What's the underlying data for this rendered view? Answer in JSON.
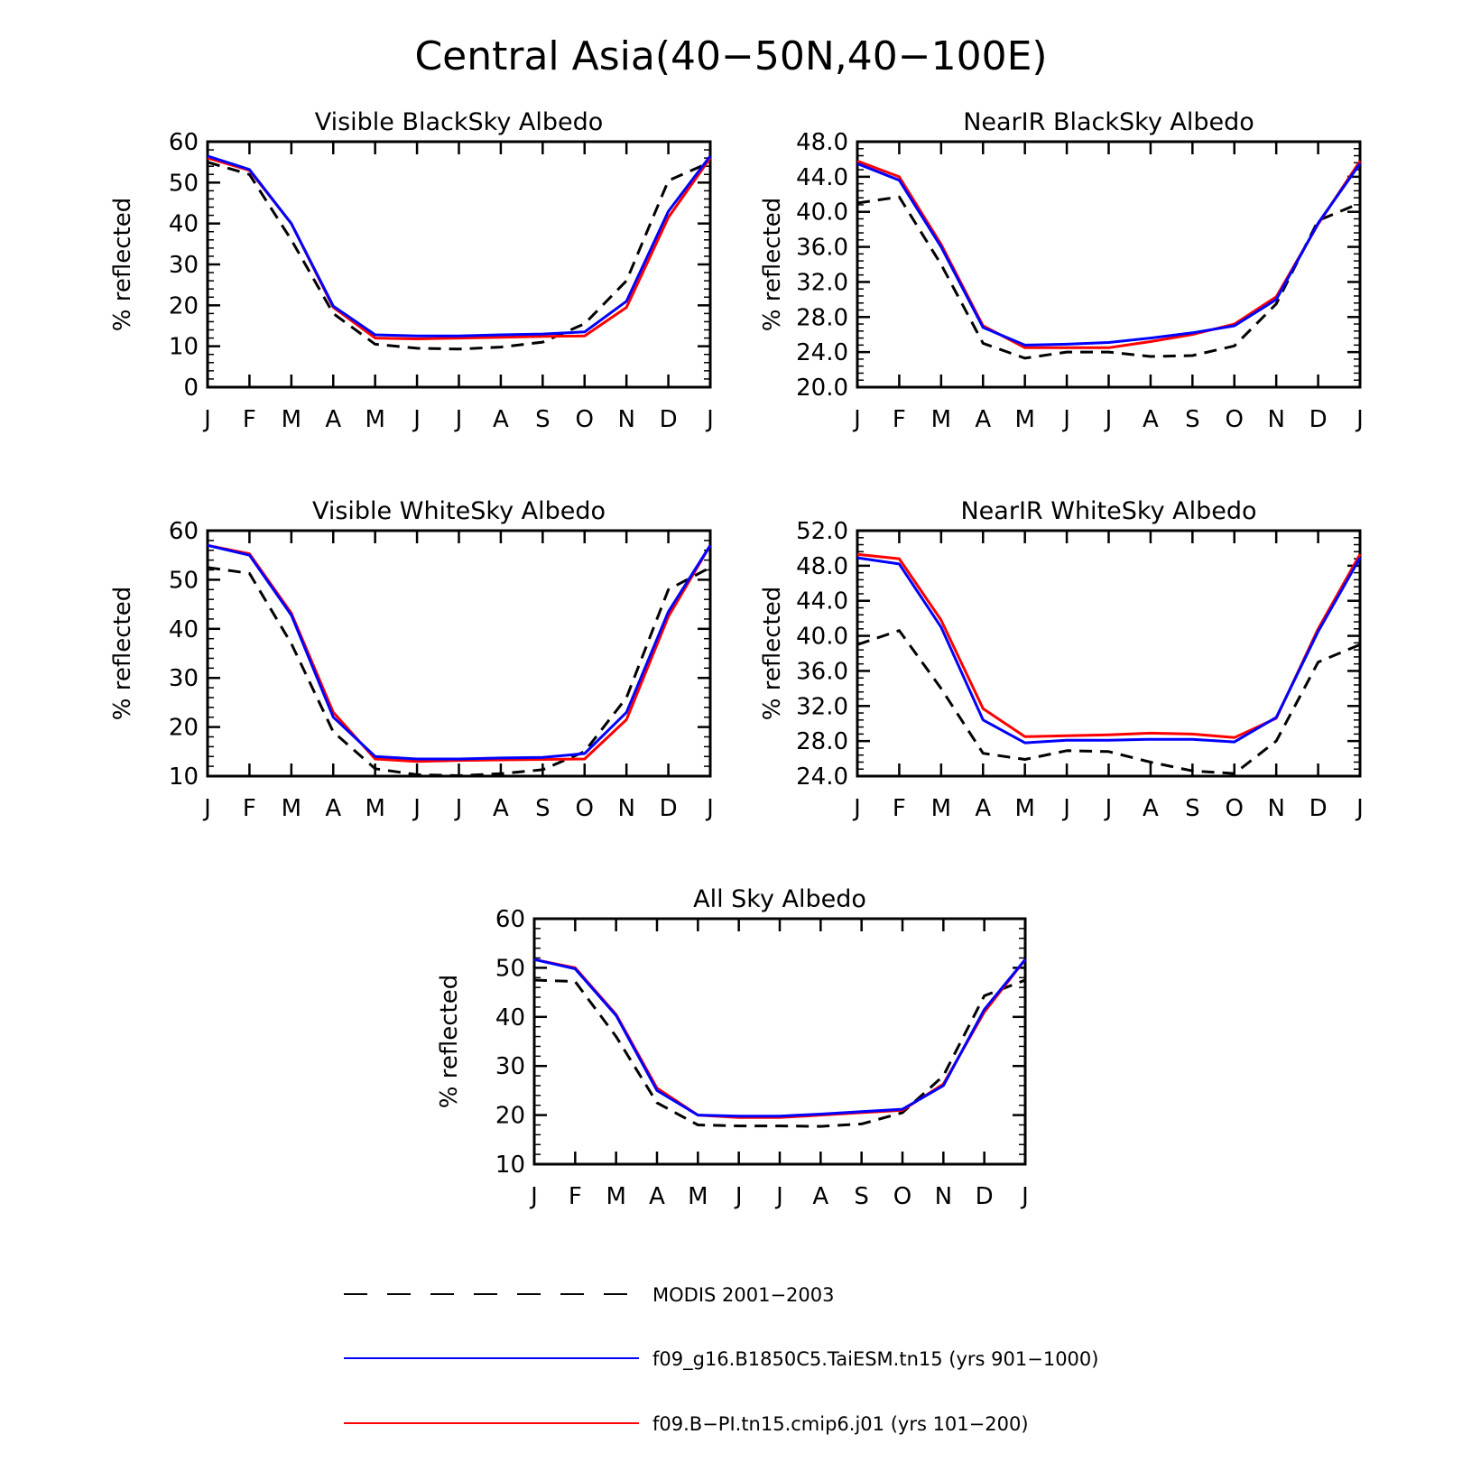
{
  "figure_title": "Central Asia(40−50N,40−100E)",
  "colors": {
    "modis": "#000000",
    "taiesm": "#0000ff",
    "cmip6": "#ff0000"
  },
  "legend": {
    "items": [
      {
        "key": "modis",
        "label": "MODIS 2001−2003",
        "style": "dashed"
      },
      {
        "key": "taiesm",
        "label": "f09_g16.B1850C5.TaiESM.tn15 (yrs 901−1000)",
        "style": "solid"
      },
      {
        "key": "cmip6",
        "label": "f09.B−PI.tn15.cmip6.j01 (yrs 101−200)",
        "style": "solid"
      }
    ]
  },
  "chart_data": [
    {
      "type": "line",
      "title": "Visible BlackSky Albedo",
      "ylabel": "% reflected",
      "ylim": [
        0,
        60
      ],
      "yticks": [
        "0",
        "10",
        "20",
        "30",
        "40",
        "50",
        "60"
      ],
      "categories": [
        "J",
        "F",
        "M",
        "A",
        "M",
        "J",
        "J",
        "A",
        "S",
        "O",
        "N",
        "D",
        "J"
      ],
      "series": [
        {
          "key": "modis",
          "values": [
            55,
            52,
            36,
            18,
            10.5,
            9.5,
            9.3,
            9.8,
            11,
            15.5,
            26,
            50.5,
            55
          ]
        },
        {
          "key": "cmip6",
          "values": [
            56,
            53,
            40,
            19.5,
            12,
            11.8,
            12,
            12.2,
            12.4,
            12.5,
            19.5,
            41.5,
            56
          ]
        },
        {
          "key": "taiesm",
          "values": [
            56.5,
            53.2,
            40,
            19.8,
            12.8,
            12.5,
            12.5,
            12.8,
            13,
            13.5,
            21,
            43,
            56.5
          ]
        }
      ]
    },
    {
      "type": "line",
      "title": "NearIR BlackSky Albedo",
      "ylabel": "% reflected",
      "ylim": [
        20,
        48
      ],
      "yticks": [
        "20.0",
        "24.0",
        "28.0",
        "32.0",
        "36.0",
        "40.0",
        "44.0",
        "48.0"
      ],
      "categories": [
        "J",
        "F",
        "M",
        "A",
        "M",
        "J",
        "J",
        "A",
        "S",
        "O",
        "N",
        "D",
        "J"
      ],
      "series": [
        {
          "key": "modis",
          "values": [
            41,
            41.7,
            34,
            25,
            23.3,
            24,
            24,
            23.5,
            23.6,
            24.7,
            29.5,
            39,
            41
          ]
        },
        {
          "key": "cmip6",
          "values": [
            45.8,
            44,
            36.3,
            27,
            24.5,
            24.5,
            24.5,
            25.2,
            26,
            27.2,
            30.3,
            38.6,
            45.8
          ]
        },
        {
          "key": "taiesm",
          "values": [
            45.5,
            43.6,
            36,
            26.8,
            24.8,
            24.9,
            25.1,
            25.6,
            26.2,
            27,
            30,
            38.7,
            45.5
          ]
        }
      ]
    },
    {
      "type": "line",
      "title": "Visible WhiteSky Albedo",
      "ylabel": "% reflected",
      "ylim": [
        10,
        60
      ],
      "yticks": [
        "10",
        "20",
        "30",
        "40",
        "50",
        "60"
      ],
      "categories": [
        "J",
        "F",
        "M",
        "A",
        "M",
        "J",
        "J",
        "A",
        "S",
        "O",
        "N",
        "D",
        "J"
      ],
      "series": [
        {
          "key": "modis",
          "values": [
            52.5,
            51.3,
            37,
            19,
            11.5,
            10.3,
            10.1,
            10.5,
            11.3,
            15,
            26,
            48,
            52.5
          ]
        },
        {
          "key": "cmip6",
          "values": [
            57,
            55.3,
            43.2,
            23,
            13.5,
            13,
            13.2,
            13.3,
            13.4,
            13.5,
            21.5,
            42.5,
            57
          ]
        },
        {
          "key": "taiesm",
          "values": [
            57,
            55,
            42.8,
            22,
            14,
            13.5,
            13.5,
            13.7,
            13.8,
            14.6,
            23,
            43.5,
            57
          ]
        }
      ]
    },
    {
      "type": "line",
      "title": "NearIR WhiteSky Albedo",
      "ylabel": "% reflected",
      "ylim": [
        24,
        52
      ],
      "yticks": [
        "24.0",
        "28.0",
        "32.0",
        "36.0",
        "40.0",
        "44.0",
        "48.0",
        "52.0"
      ],
      "categories": [
        "J",
        "F",
        "M",
        "A",
        "M",
        "J",
        "J",
        "A",
        "S",
        "O",
        "N",
        "D",
        "J"
      ],
      "series": [
        {
          "key": "modis",
          "values": [
            39,
            40.6,
            34,
            26.6,
            25.9,
            26.9,
            26.8,
            25.6,
            24.6,
            24.3,
            28,
            37,
            39
          ]
        },
        {
          "key": "cmip6",
          "values": [
            49.3,
            48.8,
            41.8,
            31.7,
            28.5,
            28.6,
            28.7,
            28.9,
            28.8,
            28.4,
            30.6,
            40.8,
            49.3
          ]
        },
        {
          "key": "taiesm",
          "values": [
            48.9,
            48.2,
            41,
            30.4,
            27.8,
            28.1,
            28.1,
            28.2,
            28.2,
            27.9,
            30.7,
            40.5,
            48.9
          ]
        }
      ]
    },
    {
      "type": "line",
      "title": "All Sky Albedo",
      "ylabel": "% reflected",
      "ylim": [
        10,
        60
      ],
      "yticks": [
        "10",
        "20",
        "30",
        "40",
        "50",
        "60"
      ],
      "categories": [
        "J",
        "F",
        "M",
        "A",
        "M",
        "J",
        "J",
        "A",
        "S",
        "O",
        "N",
        "D",
        "J"
      ],
      "series": [
        {
          "key": "modis",
          "values": [
            47.5,
            47.2,
            36,
            22.5,
            18,
            17.8,
            17.8,
            17.7,
            18.2,
            20.5,
            28,
            44.3,
            47.5
          ]
        },
        {
          "key": "cmip6",
          "values": [
            51.7,
            50,
            40.5,
            25.5,
            20,
            19.5,
            19.5,
            20,
            20.5,
            21,
            26.3,
            41,
            51.7
          ]
        },
        {
          "key": "taiesm",
          "values": [
            51.7,
            49.8,
            40.3,
            25,
            20,
            19.8,
            19.8,
            20.2,
            20.7,
            21.2,
            26,
            41.5,
            51.7
          ]
        }
      ]
    }
  ]
}
